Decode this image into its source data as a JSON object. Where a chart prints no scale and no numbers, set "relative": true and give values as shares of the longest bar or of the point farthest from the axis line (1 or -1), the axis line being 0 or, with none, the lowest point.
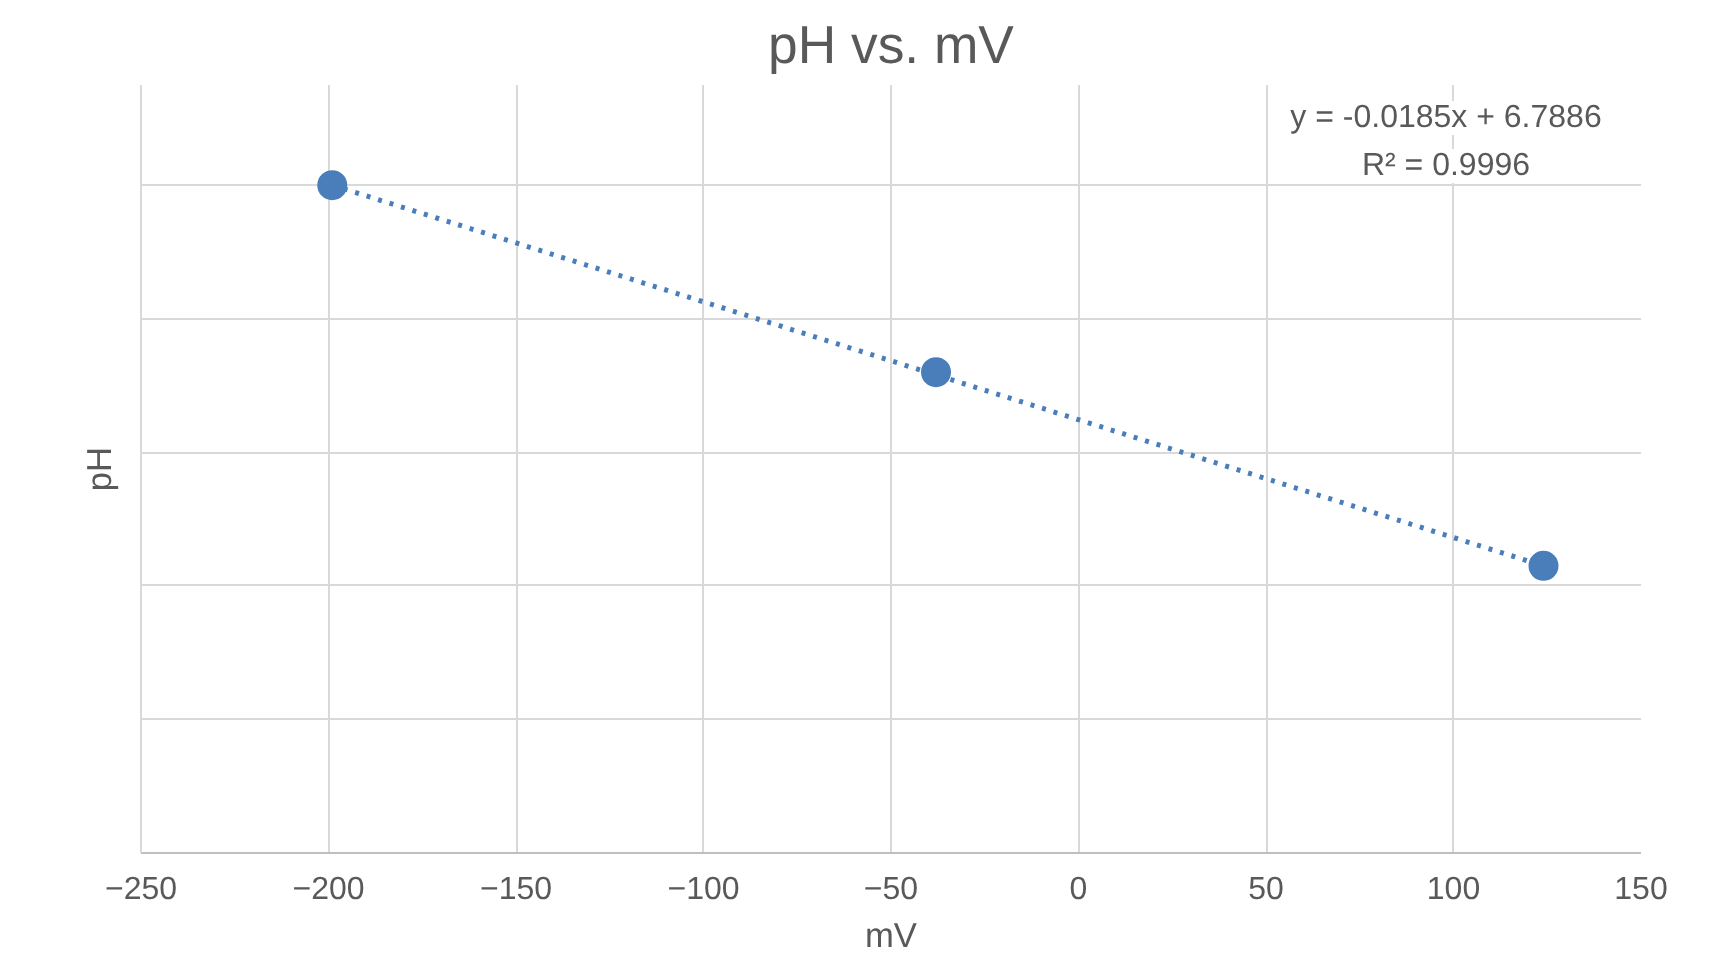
{
  "chart_data": {
    "type": "scatter",
    "title": "pH vs. mV",
    "xlabel": "mV",
    "ylabel": "pH",
    "relative": true,
    "x": [
      -199,
      -38,
      124
    ],
    "series": [
      {
        "color": "#4a7ebb",
        "values": [
          1,
          0.72,
          0.43
        ],
        "marker": "circle"
      },
      {
        "type": "line",
        "color": "#4a7ebb",
        "x": [
          -199,
          124
        ],
        "values": [
          1,
          0.43
        ],
        "line_style": "dotted",
        "marker": "none"
      }
    ],
    "annotations": [
      "y = -0.0185x + 6.7886",
      "R² = 0.9996"
    ],
    "xlim": [
      -250,
      150
    ],
    "xticks": [
      -250,
      -200,
      -150,
      -100,
      -50,
      0,
      50,
      100,
      150
    ],
    "grid": true,
    "tick_labels": "x"
  }
}
